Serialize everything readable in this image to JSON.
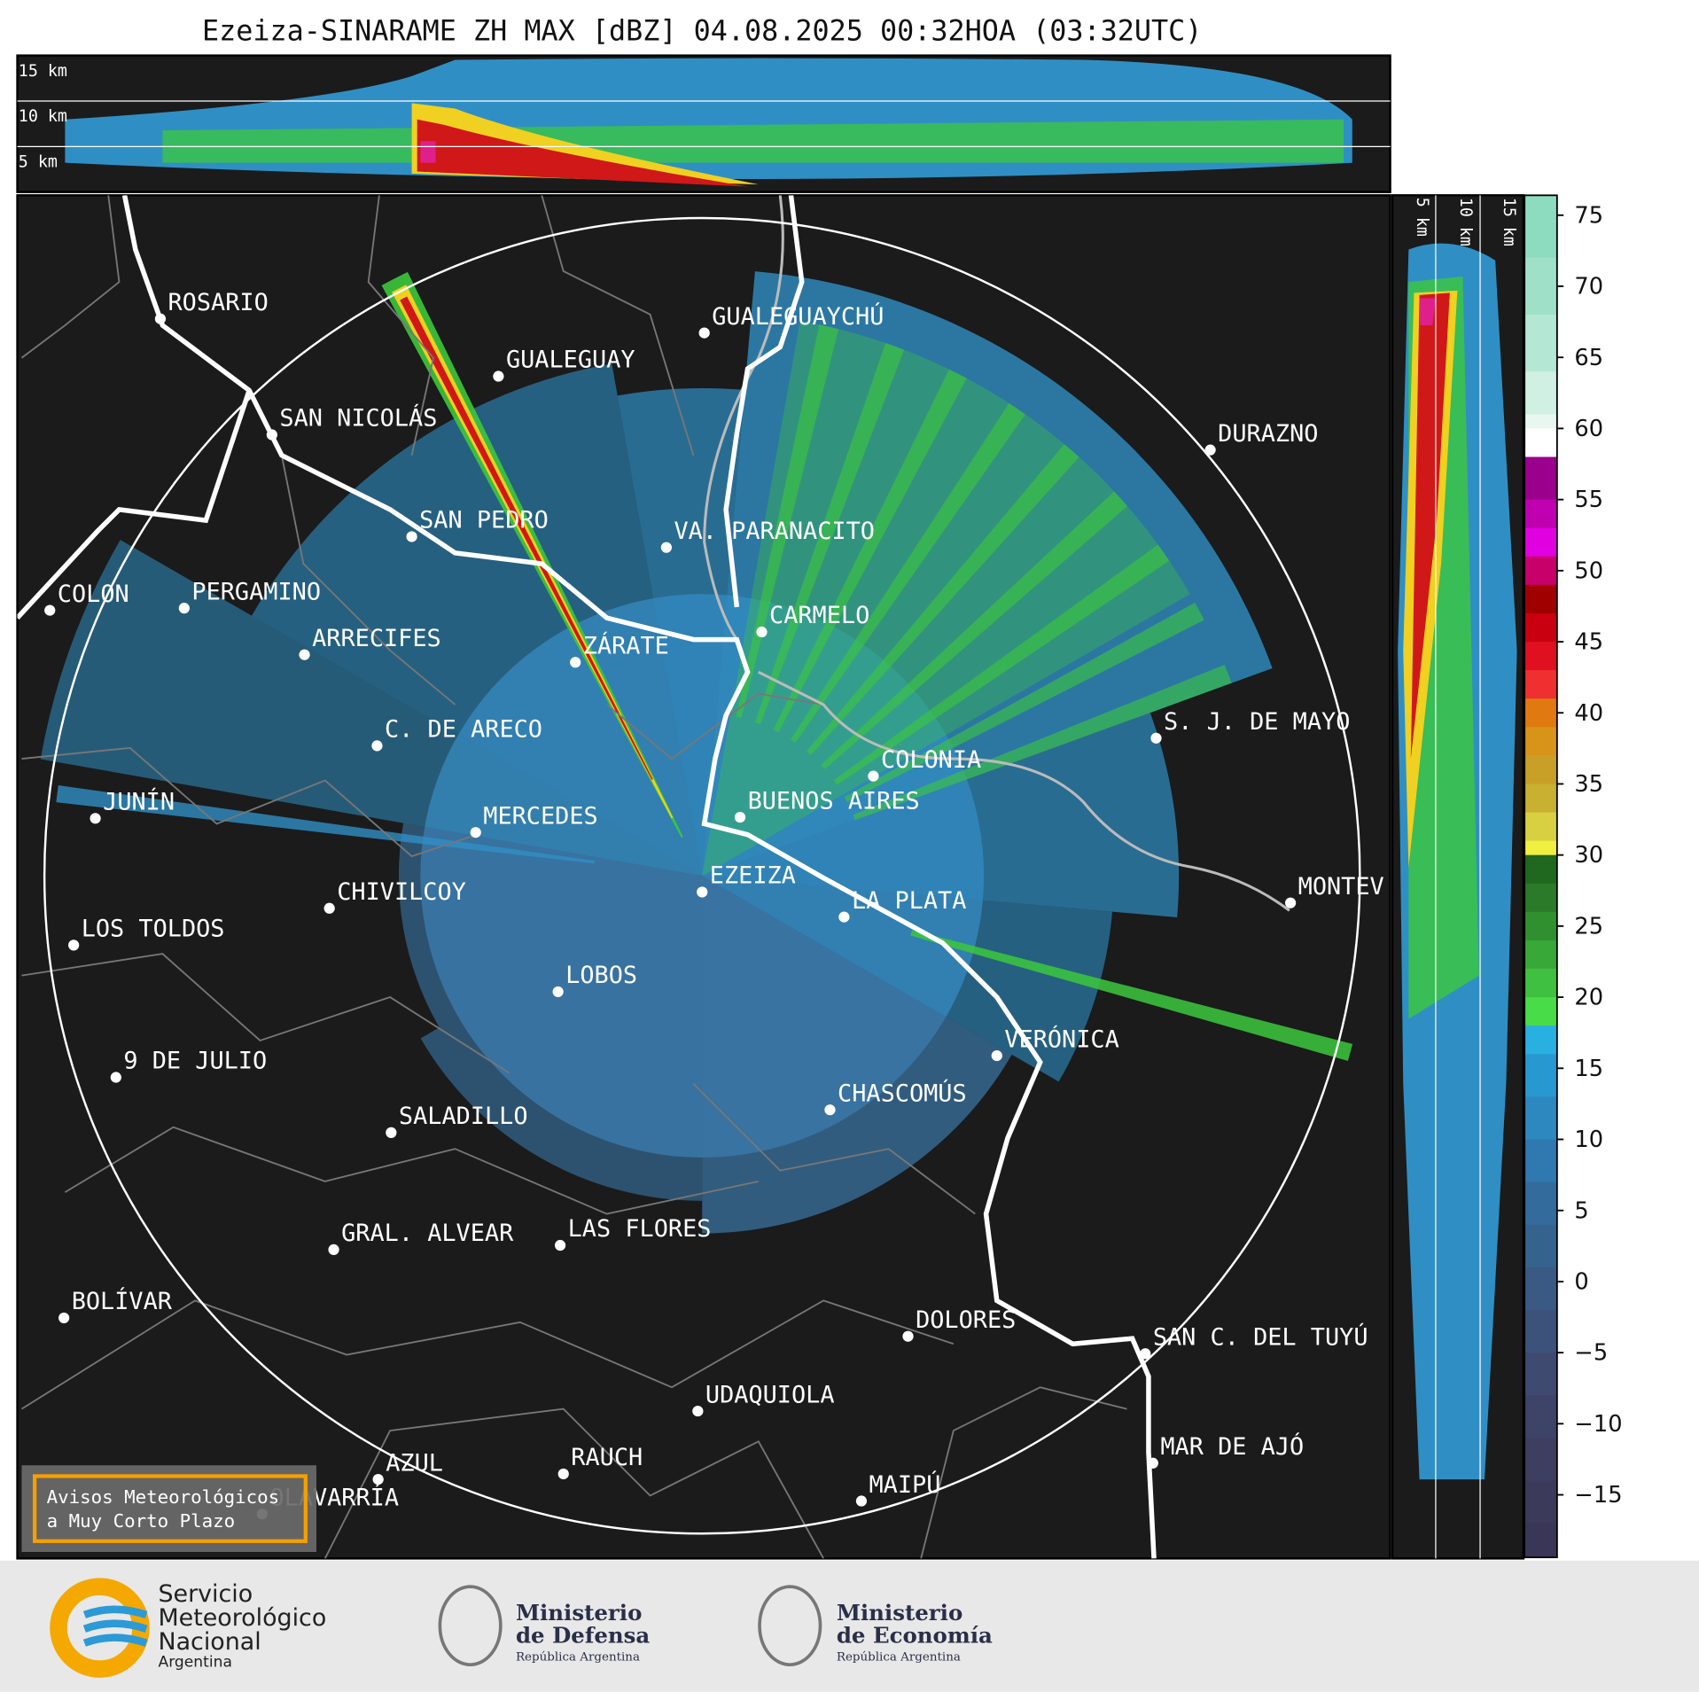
{
  "title": "Ezeiza-SINARAME ZH MAX [dBZ] 04.08.2025 00:32HOA (03:32UTC)",
  "top_panel": {
    "labels": [
      "15 km",
      "10 km",
      "5 km"
    ]
  },
  "side_panel": {
    "labels": [
      "5 km",
      "10 km",
      "15 km"
    ]
  },
  "cities": [
    "ROSARIO",
    "GUALEGUAYCHÚ",
    "GUALEGUAY",
    "SAN NICOLÁS",
    "DURAZNO",
    "SAN PEDRO",
    "VA. PARANACITO",
    "COLON",
    "PERGAMINO",
    "CARMELO",
    "ARRECIFES",
    "ZÁRATE",
    "S. J. DE MAYO",
    "C. DE ARECO",
    "COLONIA",
    "JUNÍN",
    "BUENOS AIRES",
    "MERCEDES",
    "EZEIZA",
    "MONTEV",
    "CHIVILCOY",
    "LA PLATA",
    "LOS TOLDOS",
    "LOBOS",
    "VERÓNICA",
    "9 DE JULIO",
    "CHASCOMÚS",
    "SALADILLO",
    "GRAL. ALVEAR",
    "LAS FLORES",
    "BOLÍVAR",
    "DOLORES",
    "SAN C. DEL TUYÚ",
    "UDAQUIOLA",
    "MAR DE AJÓ",
    "RAUCH",
    "AZUL",
    "MAIPÚ",
    "OLAVARRÍA"
  ],
  "colorbar": {
    "lim": [
      -19.4,
      76.4
    ],
    "ticks": [
      75,
      70,
      65,
      60,
      55,
      50,
      45,
      40,
      35,
      30,
      25,
      20,
      15,
      10,
      5,
      0,
      {
        "value": -5,
        "label": "−5"
      },
      {
        "value": -10,
        "label": "−10"
      },
      {
        "value": -15,
        "label": "−15"
      }
    ]
  },
  "warning_box": [
    "Avisos Meteorológicos",
    "a Muy Corto Plazo"
  ],
  "footer": {
    "smn": [
      "Servicio",
      "Meteorológico",
      "Nacional",
      "Argentina"
    ],
    "defensa": [
      "Ministerio",
      "de Defensa",
      "República Argentina"
    ],
    "economia": [
      "Ministerio",
      "de Economía",
      "República Argentina"
    ]
  }
}
